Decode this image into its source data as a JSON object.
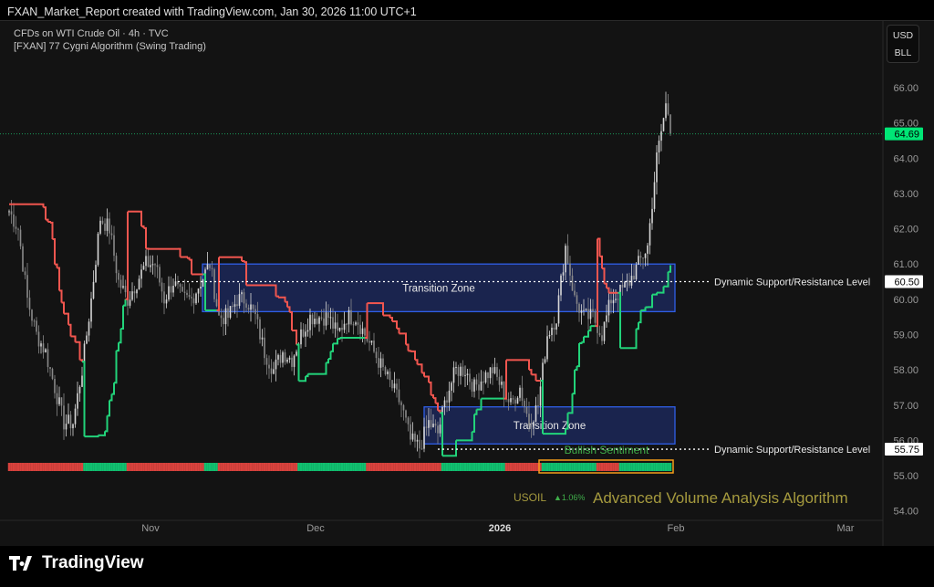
{
  "header": {
    "title": "FXAN_Market_Report created with TradingView.com, Jan 30, 2026 11:00 UTC+1"
  },
  "legend": {
    "symbol_line": "CFDs on WTI Crude Oil · 4h · TVC",
    "indicator_line": "[FXAN] 77 Cygni Algorithm (Swing Trading)"
  },
  "currency": {
    "top": "USD",
    "bottom": "BLL"
  },
  "price_axis": {
    "ticks": [
      "66.00",
      "65.00",
      "64.00",
      "63.00",
      "62.00",
      "61.00",
      "60.00",
      "59.00",
      "58.00",
      "57.00",
      "56.00",
      "55.00",
      "54.00"
    ],
    "last_price": "64.69",
    "level_1": "60.50",
    "level_2": "55.75"
  },
  "time_axis": {
    "ticks": [
      "Nov",
      "Dec",
      "2026",
      "Feb",
      "Mar"
    ]
  },
  "annotations": {
    "zone_label": "Transition Zone",
    "level_label": "Dynamic Support/Resistance Level",
    "sentiment": "Bullish Sentiment",
    "ticker": "USOIL",
    "change": "▲1.06%",
    "algo": "Advanced Volume Analysis Algorithm"
  },
  "brand": {
    "name": "TradingView"
  },
  "colors": {
    "bull": "#22d37a",
    "bear": "#f2564f",
    "zone": "#2f5fe8",
    "accent_gold": "#a59a3e",
    "last_price_bg": "#00e676",
    "highlight_box": "#f59c1a"
  },
  "chart_data": {
    "type": "candlestick",
    "interval": "4h",
    "start": "2025-10-06",
    "end": "2026-01-30",
    "ylim": [
      53.6,
      66.8
    ],
    "sampled_closes": [
      62.5,
      62.0,
      60.0,
      59.0,
      58.5,
      57.5,
      56.5,
      56.5,
      58,
      60,
      62.3,
      62,
      60.5,
      60,
      60.5,
      61,
      61,
      60,
      60.5,
      60,
      60,
      60.5,
      61,
      59.5,
      59.5,
      60,
      60,
      59.5,
      58.5,
      58,
      58.5,
      58.3,
      59,
      59.5,
      59.5,
      59.5,
      59,
      59.5,
      59.5,
      59,
      58.5,
      58,
      57.5,
      57,
      56,
      55.8,
      56.5,
      56.2,
      57.3,
      58,
      58,
      57.5,
      57.8,
      58,
      57.5,
      57,
      57.5,
      56.5,
      57,
      59,
      59.5,
      61.5,
      60,
      59.5,
      59.5,
      59,
      60,
      60.2,
      60.5,
      61,
      61.5,
      64,
      65.5,
      64.69
    ],
    "zones": [
      {
        "label": "Transition Zone",
        "top": 61.0,
        "bottom": 59.65
      },
      {
        "label": "Transition Zone",
        "top": 56.95,
        "bottom": 55.9
      }
    ],
    "levels": [
      60.5,
      55.75
    ]
  }
}
